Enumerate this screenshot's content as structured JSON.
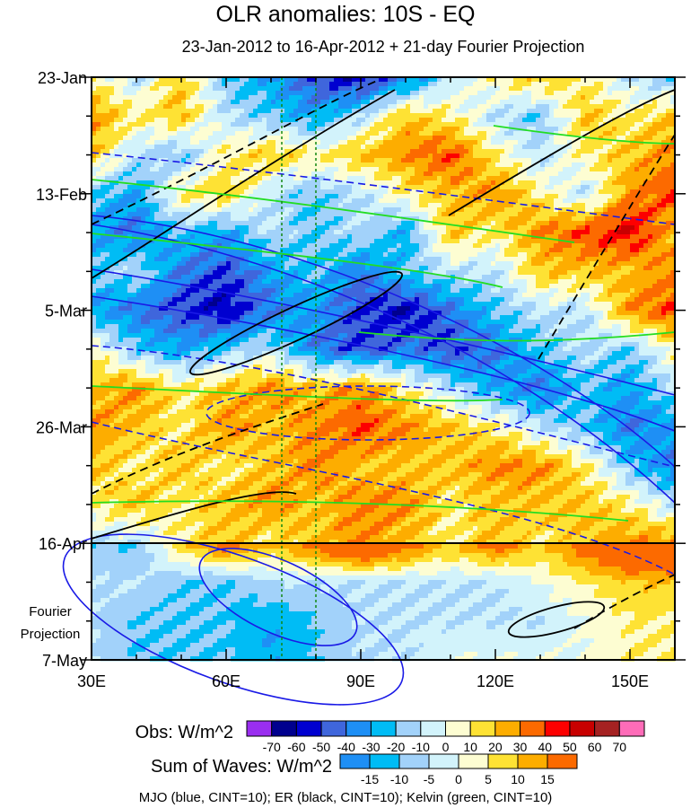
{
  "chart_data": {
    "type": "heatmap",
    "title": "OLR anomalies: 10S - EQ",
    "subtitle": "23-Jan-2012 to 16-Apr-2012 + 21-day Fourier Projection",
    "xlabel": "",
    "ylabel": "",
    "x_ticks": [
      "30E",
      "60E",
      "90E",
      "120E",
      "150E"
    ],
    "x_tick_values": [
      30,
      60,
      90,
      120,
      150
    ],
    "xlim": [
      30,
      160
    ],
    "y_ticks": [
      "23-Jan",
      "13-Feb",
      "5-Mar",
      "26-Mar",
      "16-Apr",
      "7-May"
    ],
    "y_tick_days": [
      0,
      21,
      42,
      63,
      84,
      105
    ],
    "ylim_days": [
      0,
      105
    ],
    "projection_label": [
      "Fourier",
      "Projection"
    ],
    "projection_start_day": 84,
    "reference_lons": [
      72.5,
      80
    ],
    "grid_lons": [
      30,
      40,
      50,
      60,
      70,
      80,
      90,
      100,
      110,
      120,
      130,
      140,
      150,
      160
    ],
    "grid_days": [
      0,
      7,
      14,
      21,
      28,
      35,
      42,
      49,
      56,
      63,
      70,
      77,
      84,
      91,
      98,
      105
    ],
    "values": [
      [
        10,
        -10,
        20,
        -20,
        -30,
        -50,
        -60,
        -40,
        -10,
        10,
        20,
        10,
        -10,
        -20
      ],
      [
        30,
        10,
        20,
        -10,
        -20,
        -30,
        -10,
        20,
        10,
        -10,
        -20,
        20,
        10,
        20
      ],
      [
        20,
        -10,
        -20,
        10,
        20,
        10,
        20,
        30,
        40,
        10,
        -10,
        10,
        20,
        30
      ],
      [
        -20,
        -30,
        10,
        20,
        -10,
        -20,
        -10,
        10,
        20,
        30,
        10,
        -10,
        30,
        40
      ],
      [
        -30,
        -40,
        -20,
        -30,
        -10,
        -20,
        -10,
        -30,
        20,
        10,
        30,
        40,
        50,
        20
      ],
      [
        -20,
        -10,
        -40,
        -50,
        -30,
        -20,
        -40,
        -20,
        -10,
        -10,
        20,
        20,
        20,
        30
      ],
      [
        -30,
        -40,
        -50,
        -60,
        -40,
        -30,
        -50,
        -60,
        -40,
        -20,
        -10,
        -10,
        30,
        40
      ],
      [
        10,
        -20,
        -30,
        -20,
        -10,
        -40,
        -50,
        -40,
        -50,
        -40,
        -20,
        -10,
        -20,
        10
      ],
      [
        20,
        30,
        10,
        20,
        30,
        20,
        30,
        10,
        -10,
        -30,
        -40,
        -20,
        -30,
        -10
      ],
      [
        30,
        20,
        10,
        30,
        20,
        30,
        40,
        30,
        20,
        10,
        -10,
        -20,
        -40,
        -30
      ],
      [
        20,
        10,
        20,
        10,
        20,
        30,
        20,
        20,
        20,
        30,
        30,
        10,
        -20,
        -40
      ],
      [
        10,
        20,
        10,
        20,
        30,
        20,
        30,
        30,
        10,
        20,
        20,
        20,
        10,
        -10
      ],
      [
        -10,
        -10,
        10,
        20,
        10,
        20,
        30,
        20,
        10,
        20,
        10,
        20,
        30,
        30
      ],
      [
        -5,
        -5,
        -10,
        -10,
        -5,
        -5,
        -5,
        -5,
        -5,
        -5,
        0,
        5,
        10,
        10
      ],
      [
        -5,
        -10,
        -10,
        -10,
        -15,
        -10,
        -5,
        -5,
        -5,
        -5,
        -5,
        0,
        5,
        5
      ],
      [
        -5,
        -10,
        -10,
        -10,
        -15,
        -10,
        -5,
        -5,
        0,
        0,
        0,
        0,
        5,
        5
      ]
    ],
    "obs_colorbar": {
      "label": "Obs: W/m^2",
      "levels": [
        "-70",
        "-60",
        "-50",
        "-40",
        "-30",
        "-20",
        "-10",
        "0",
        "10",
        "20",
        "30",
        "40",
        "50",
        "60",
        "70"
      ],
      "colors": [
        "#9a2ef0",
        "#00008e",
        "#0000d0",
        "#3f66dc",
        "#1e8ff5",
        "#00bcf5",
        "#a2d2fa",
        "#d2f3fb",
        "#fdfdd2",
        "#fee234",
        "#fdad00",
        "#fc6a00",
        "#fd0000",
        "#c80000",
        "#a52222",
        "#fe6cb8"
      ]
    },
    "waves_colorbar": {
      "label": "Sum of Waves: W/m^2",
      "levels": [
        "-15",
        "-10",
        "-5",
        "0",
        "5",
        "10",
        "15"
      ],
      "colors": [
        "#1e8ff5",
        "#00bcf5",
        "#a2d2fa",
        "#d2f3fb",
        "#fdfdd2",
        "#fee234",
        "#fdad00",
        "#fc6a00"
      ]
    },
    "contour_note": "MJO (blue, CINT=10); ER (black, CINT=10); Kelvin (green, CINT=10)",
    "series_colors": {
      "MJO": "#1a1ae6",
      "ER": "#000000",
      "Kelvin": "#22dd22"
    }
  }
}
